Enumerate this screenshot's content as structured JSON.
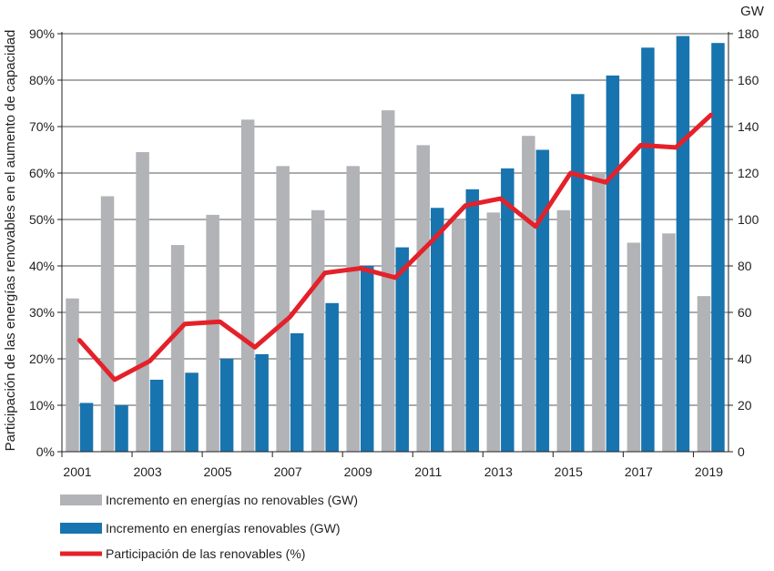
{
  "chart_data": {
    "type": "bar+line",
    "categories": [
      "2001",
      "2002",
      "2003",
      "2004",
      "2005",
      "2006",
      "2007",
      "2008",
      "2009",
      "2010",
      "2011",
      "2012",
      "2013",
      "2014",
      "2015",
      "2016",
      "2017",
      "2018",
      "2019"
    ],
    "x_tick_labels": [
      "2001",
      "2003",
      "2005",
      "2007",
      "2009",
      "2011",
      "2013",
      "2015",
      "2017",
      "2019"
    ],
    "ylabel_left": "Participación de las energías renovables en el aumento de capacidad",
    "ylabel_right": "GW",
    "ylim_left": [
      0,
      90
    ],
    "ylim_right": [
      0,
      180
    ],
    "yticks_left": [
      "0%",
      "10%",
      "20%",
      "30%",
      "40%",
      "50%",
      "60%",
      "70%",
      "80%",
      "90%"
    ],
    "yticks_right": [
      "0",
      "20",
      "40",
      "60",
      "80",
      "100",
      "120",
      "140",
      "160",
      "180"
    ],
    "grid": true,
    "legend_position": "bottom-left",
    "series": [
      {
        "name": "Incremento en energías no renovables (GW)",
        "kind": "bar",
        "axis": "right",
        "color": "#b1b3b6",
        "values": [
          66,
          110,
          129,
          89,
          102,
          143,
          123,
          104,
          123,
          147,
          132,
          100,
          103,
          136,
          104,
          120,
          90,
          94,
          67
        ]
      },
      {
        "name": "Incremento en energías renovables (GW)",
        "kind": "bar",
        "axis": "right",
        "color": "#1874ae",
        "values": [
          21,
          20,
          31,
          34,
          40,
          42,
          51,
          64,
          80,
          88,
          105,
          113,
          122,
          130,
          154,
          162,
          174,
          179,
          176
        ]
      },
      {
        "name": "Participación de las renovables (%)",
        "kind": "line",
        "axis": "left",
        "color": "#e4212a",
        "values": [
          24,
          15.5,
          19.5,
          27.5,
          28,
          22.5,
          29,
          38.5,
          39.5,
          37.5,
          45,
          53,
          54.5,
          48.5,
          60,
          58,
          66,
          65.5,
          72.5
        ]
      }
    ]
  }
}
